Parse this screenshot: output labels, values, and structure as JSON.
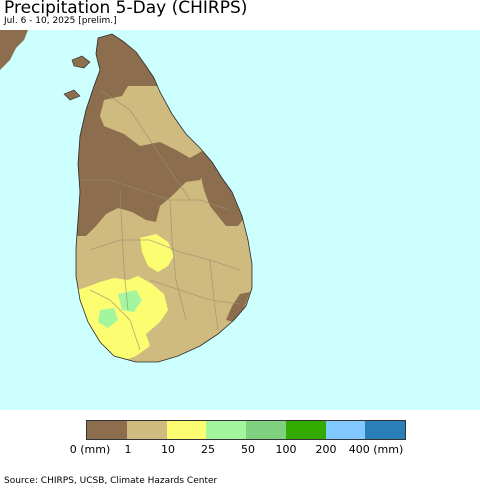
{
  "header": {
    "title": "Precipitation 5-Day (CHIRPS)",
    "subtitle": "Jul. 6 - 10, 2025 [prelim.]"
  },
  "map": {
    "sea_color": "#ccfffe",
    "land_colors": {
      "lt_1mm": "#8c6d4d",
      "1_10mm": "#cfbb7f",
      "10_25mm": "#fdfd72",
      "25_50mm": "#a3f59e"
    }
  },
  "legend": {
    "colors": [
      "#8c6d4d",
      "#cfbb7f",
      "#fdfd72",
      "#a3f59e",
      "#7fd07f",
      "#33aa00",
      "#80c8ff",
      "#2a7fb8"
    ],
    "labels": [
      "0 (mm)",
      "1",
      "10",
      "25",
      "50",
      "100",
      "200",
      "400 (mm)"
    ]
  },
  "footer": {
    "source": "Source: CHIRPS, UCSB, Climate Hazards Center"
  }
}
